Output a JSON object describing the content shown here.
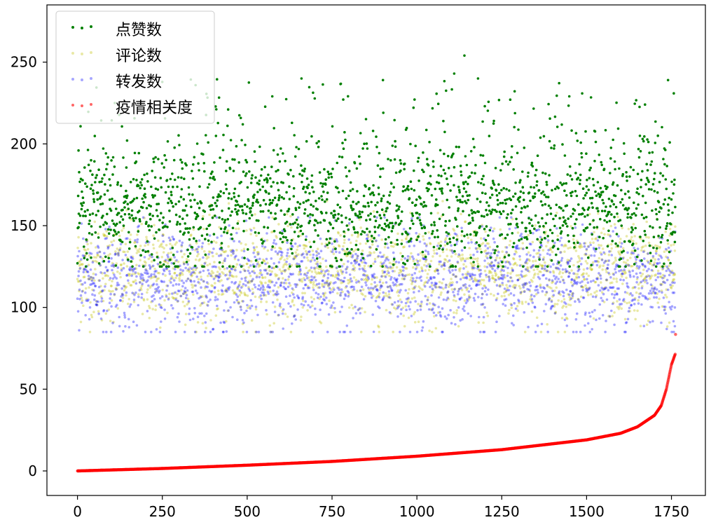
{
  "chart_data": {
    "type": "scatter",
    "title": "",
    "xlabel": "",
    "ylabel": "",
    "xlim": [
      -90,
      1850
    ],
    "ylim": [
      -15,
      285
    ],
    "x_ticks": [
      0,
      250,
      500,
      750,
      1000,
      1250,
      1500,
      1750
    ],
    "y_ticks": [
      0,
      50,
      100,
      150,
      200,
      250
    ],
    "grid": false,
    "legend_position": "top-left",
    "n_points_per_series": 1762,
    "series": [
      {
        "name": "点赞数",
        "color": "#008000",
        "alpha": 1.0,
        "distribution": "random, mostly 130–200, range about 125–255",
        "y_range": [
          125,
          255
        ],
        "sample_points": [
          [
            3,
            196
          ],
          [
            40,
            190
          ],
          [
            110,
            165
          ],
          [
            400,
            160
          ],
          [
            660,
            240
          ],
          [
            900,
            239
          ],
          [
            1110,
            243
          ],
          [
            1140,
            254
          ],
          [
            1180,
            240
          ],
          [
            1500,
            170
          ],
          [
            1740,
            239
          ],
          [
            1760,
            140
          ]
        ]
      },
      {
        "name": "评论数",
        "color": "#bfbf00",
        "alpha": 0.35,
        "distribution": "random, mostly 95–150, range about 85–165",
        "y_range": [
          85,
          165
        ],
        "sample_points": [
          [
            5,
            110
          ],
          [
            100,
            140
          ],
          [
            300,
            120
          ],
          [
            600,
            130
          ],
          [
            900,
            115
          ],
          [
            1200,
            125
          ],
          [
            1500,
            135
          ],
          [
            1760,
            120
          ]
        ]
      },
      {
        "name": "转发数",
        "color": "#0000ff",
        "alpha": 0.35,
        "distribution": "random, mostly 90–145, range about 85–155",
        "y_range": [
          85,
          155
        ],
        "sample_points": [
          [
            5,
            86
          ],
          [
            100,
            130
          ],
          [
            300,
            110
          ],
          [
            600,
            115
          ],
          [
            900,
            105
          ],
          [
            1200,
            100
          ],
          [
            1500,
            110
          ],
          [
            1760,
            100
          ]
        ]
      },
      {
        "name": "疫情相关度",
        "color": "#ff0000",
        "alpha": 0.6,
        "distribution": "sorted ascending, smooth rising curve",
        "points": [
          [
            0,
            0
          ],
          [
            250,
            1.5
          ],
          [
            500,
            3.5
          ],
          [
            750,
            5.8
          ],
          [
            1000,
            9
          ],
          [
            1250,
            13
          ],
          [
            1500,
            19
          ],
          [
            1600,
            23
          ],
          [
            1650,
            27
          ],
          [
            1700,
            34
          ],
          [
            1720,
            40
          ],
          [
            1735,
            50
          ],
          [
            1750,
            65
          ],
          [
            1762,
            72
          ]
        ]
      }
    ]
  }
}
